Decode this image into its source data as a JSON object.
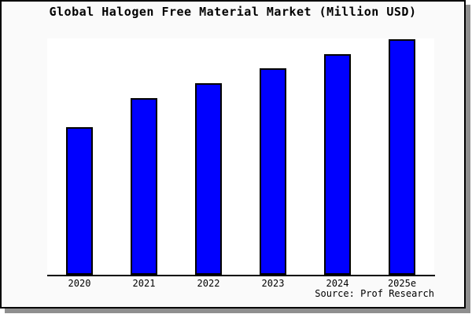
{
  "title": "Global Halogen Free Material Market (Million USD)",
  "source": "Source: Prof Research",
  "chart_data": {
    "type": "bar",
    "title": "Global Halogen Free Material Market (Million USD)",
    "categories": [
      "2020",
      "2021",
      "2022",
      "2023",
      "2024",
      "2025e"
    ],
    "values": [
      100,
      120,
      130,
      140,
      150,
      160
    ],
    "values_note": "Y-axis has no tick labels in the chart; values are relative bar heights indexed to 2020 = 100.",
    "xlabel": "",
    "ylabel": "",
    "ylim": [
      0,
      160.5
    ],
    "grid": false,
    "legend": false,
    "source": "Source: Prof Research"
  },
  "colors": {
    "figure_bg": "#fafafa",
    "plot_bg": "#ffffff",
    "bar_fill": "#0000ff",
    "bar_border": "#000000",
    "axis": "#000000",
    "frame_border": "#000000",
    "shadow": "#8f8f8f",
    "text": "#000000"
  }
}
